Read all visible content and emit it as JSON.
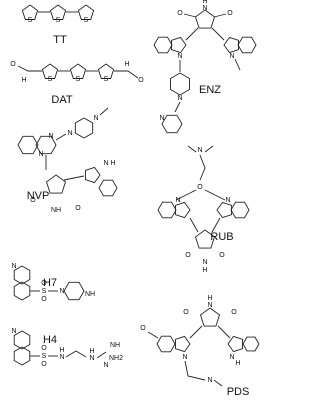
{
  "structures": [
    {
      "label": "TT",
      "atoms": [
        "S",
        "S",
        "S"
      ]
    },
    {
      "label": "DAT",
      "atoms": [
        "O",
        "H",
        "S",
        "S",
        "S",
        "H",
        "O"
      ]
    },
    {
      "label": "ENZ",
      "atoms": [
        "H",
        "N",
        "O",
        "O",
        "N",
        "N",
        "N",
        "N"
      ]
    },
    {
      "label": "NVP",
      "atoms": [
        "N",
        "N",
        "N",
        "N",
        "N",
        "H",
        "O",
        "O",
        "NH"
      ]
    },
    {
      "label": "RUB",
      "atoms": [
        "N",
        "O",
        "N",
        "N",
        "O",
        "O",
        "N",
        "H"
      ]
    },
    {
      "label": "H7",
      "atoms": [
        "N",
        "O",
        "S",
        "O",
        "N",
        "NH"
      ]
    },
    {
      "label": "H4",
      "atoms": [
        "N",
        "O",
        "S",
        "O",
        "H",
        "N",
        "H",
        "N",
        "N",
        "NH",
        "NH2"
      ]
    },
    {
      "label": "PDS",
      "atoms": [
        "H",
        "N",
        "O",
        "O",
        "O",
        "N",
        "N",
        "H",
        "N"
      ]
    }
  ]
}
